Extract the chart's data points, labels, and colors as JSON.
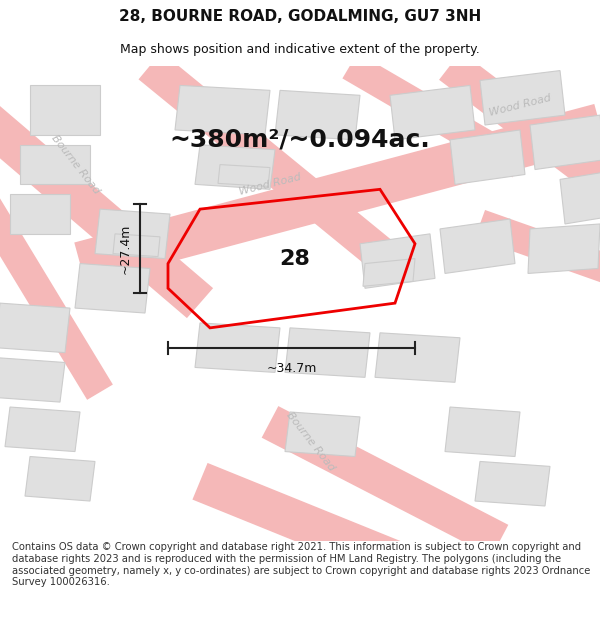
{
  "title": "28, BOURNE ROAD, GODALMING, GU7 3NH",
  "subtitle": "Map shows position and indicative extent of the property.",
  "area_text": "~380m²/~0.094ac.",
  "label_28": "28",
  "dim_width": "~34.7m",
  "dim_height": "~27.4m",
  "footer": "Contains OS data © Crown copyright and database right 2021. This information is subject to Crown copyright and database rights 2023 and is reproduced with the permission of HM Land Registry. The polygons (including the associated geometry, namely x, y co-ordinates) are subject to Crown copyright and database rights 2023 Ordnance Survey 100026316.",
  "bg_color": "#f5f5f5",
  "road_color": "#f5b8b8",
  "building_color": "#e0e0e0",
  "building_outline": "#cccccc",
  "plot_color": "#ff0000",
  "road_label_color": "#bbbbbb",
  "title_fontsize": 11,
  "subtitle_fontsize": 9,
  "area_fontsize": 18,
  "label_fontsize": 16,
  "footer_fontsize": 7.2,
  "dim_fontsize": 9,
  "road_label_fontsize": 8
}
